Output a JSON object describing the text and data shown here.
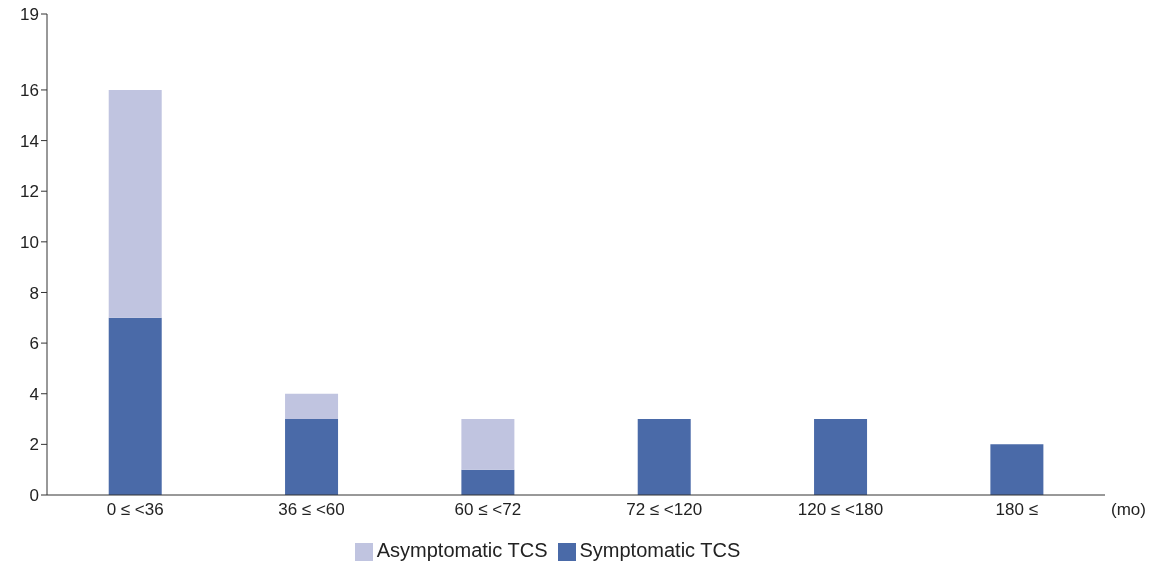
{
  "chart_data": {
    "type": "bar",
    "stacked": true,
    "xlabel": "(mo)",
    "categories": [
      "0 ≤ <36",
      "36 ≤ <60",
      "60 ≤ <72",
      "72 ≤ <120",
      "120 ≤ <180",
      "180  ≤"
    ],
    "series": [
      {
        "name": "Symptomatic TCS",
        "color": "#4a6aa8",
        "values": [
          7,
          3,
          1,
          3,
          3,
          2
        ]
      },
      {
        "name": "Asymptomatic TCS",
        "color": "#c0c4e0",
        "values": [
          9,
          1,
          2,
          null,
          null,
          null
        ]
      }
    ],
    "ylim": [
      0,
      19
    ],
    "yticks": [
      0,
      2,
      4,
      6,
      8,
      10,
      12,
      14,
      16,
      19
    ],
    "grid": false,
    "legend": "bottom"
  }
}
